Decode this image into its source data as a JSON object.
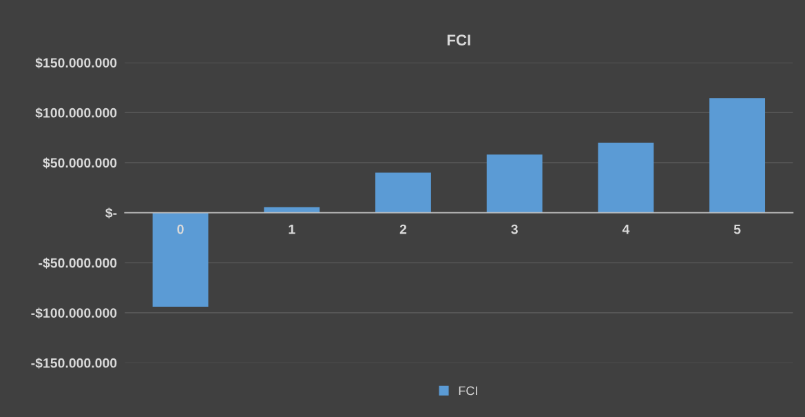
{
  "chart_data": {
    "type": "bar",
    "title": "FCI",
    "categories": [
      "0",
      "1",
      "2",
      "3",
      "4",
      "5"
    ],
    "series": [
      {
        "name": "FCI",
        "color": "#5b9bd5",
        "values": [
          -94000000,
          5500000,
          40000000,
          58000000,
          70000000,
          114500000
        ]
      }
    ],
    "ylim": [
      -150000000,
      150000000
    ],
    "yticks": [
      {
        "value": 150000000,
        "label": "$150.000.000"
      },
      {
        "value": 100000000,
        "label": "$100.000.000"
      },
      {
        "value": 50000000,
        "label": "$50.000.000"
      },
      {
        "value": 0,
        "label": "$-"
      },
      {
        "value": -50000000,
        "label": "-$50.000.000"
      },
      {
        "value": -100000000,
        "label": "-$100.000.000"
      },
      {
        "value": -150000000,
        "label": "-$150.000.000"
      }
    ],
    "grid": "y",
    "legend": "bottom"
  }
}
